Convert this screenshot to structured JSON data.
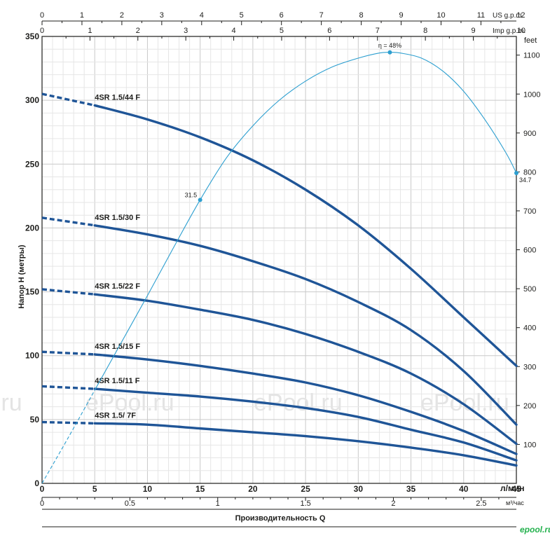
{
  "chart_data": {
    "type": "line",
    "ylabel": "Напор  H  (метры)",
    "xlabel": "Производительность  Q",
    "x_unit_lpm": "л/мин",
    "x_unit_m3h": "м³/час",
    "y_unit_feet": "feet",
    "top_unit_us": "US g.p.m.",
    "top_unit_imp": "Imp g.p.m.",
    "xlim": [
      0,
      45
    ],
    "ylim": [
      0,
      350
    ],
    "feet_ylim": [
      0,
      1148
    ],
    "x_ticks": [
      0,
      5,
      10,
      15,
      20,
      25,
      30,
      35,
      40,
      45
    ],
    "y_ticks": [
      0,
      50,
      100,
      150,
      200,
      250,
      300,
      350
    ],
    "feet_ticks": [
      100,
      200,
      300,
      400,
      500,
      600,
      700,
      800,
      900,
      1000,
      1100
    ],
    "m3h_ticks": [
      0,
      0.5,
      1,
      1.5,
      2,
      2.5
    ],
    "us_gpm_ticks": [
      0,
      1,
      2,
      3,
      4,
      5,
      6,
      7,
      8,
      9,
      10,
      11,
      12
    ],
    "imp_gpm_ticks": [
      0,
      1,
      2,
      3,
      4,
      5,
      6,
      7,
      8,
      9,
      10
    ],
    "grid": true,
    "series": [
      {
        "name": "4SR 1.5/44 F",
        "x": [
          0,
          5,
          10,
          15,
          20,
          25,
          30,
          35,
          40,
          45
        ],
        "y": [
          305,
          296,
          285,
          271,
          253,
          230,
          202,
          168,
          130,
          92
        ]
      },
      {
        "name": "4SR 1.5/30 F",
        "x": [
          0,
          5,
          10,
          15,
          20,
          25,
          30,
          35,
          40,
          45
        ],
        "y": [
          208,
          202,
          195,
          186,
          174,
          160,
          142,
          120,
          88,
          46
        ]
      },
      {
        "name": "4SR 1.5/22 F",
        "x": [
          0,
          5,
          10,
          15,
          20,
          25,
          30,
          35,
          40,
          45
        ],
        "y": [
          152,
          148,
          143,
          136,
          128,
          117,
          103,
          86,
          62,
          31
        ]
      },
      {
        "name": "4SR 1.5/15 F",
        "x": [
          0,
          5,
          10,
          15,
          20,
          25,
          30,
          35,
          40,
          45
        ],
        "y": [
          103,
          101,
          97,
          92,
          86,
          79,
          69,
          56,
          41,
          23
        ]
      },
      {
        "name": "4SR 1.5/11 F",
        "x": [
          0,
          5,
          10,
          15,
          20,
          25,
          30,
          35,
          40,
          45
        ],
        "y": [
          76,
          74,
          71,
          68,
          64,
          59,
          52,
          42,
          32,
          18
        ]
      },
      {
        "name": "4SR 1.5/ 7F",
        "x": [
          0,
          5,
          10,
          15,
          20,
          25,
          30,
          35,
          40,
          45
        ],
        "y": [
          48,
          47,
          46,
          43,
          40,
          37,
          33,
          28,
          22,
          14
        ]
      }
    ],
    "efficiency_curve": {
      "x": [
        0,
        2.5,
        5,
        7.5,
        10,
        12.5,
        15,
        17.5,
        20,
        22.5,
        25,
        27.5,
        30,
        32,
        33,
        34,
        36,
        38,
        40,
        42,
        44,
        45
      ],
      "y": [
        0,
        36,
        73,
        110,
        147,
        185,
        222,
        255,
        280,
        300,
        315,
        326,
        333,
        337,
        337.5,
        337,
        333,
        323,
        307,
        285,
        259,
        243
      ],
      "points": [
        {
          "x": 15,
          "y": 222,
          "label": "31.5"
        },
        {
          "x": 33,
          "y": 337.5,
          "label": "η = 48%"
        },
        {
          "x": 45,
          "y": 243,
          "label": "34.7"
        }
      ]
    },
    "watermarks": [
      ".ru",
      "ePool.ru",
      "ePool.ru",
      "ePool.ru"
    ],
    "logo": "epool.ru"
  }
}
